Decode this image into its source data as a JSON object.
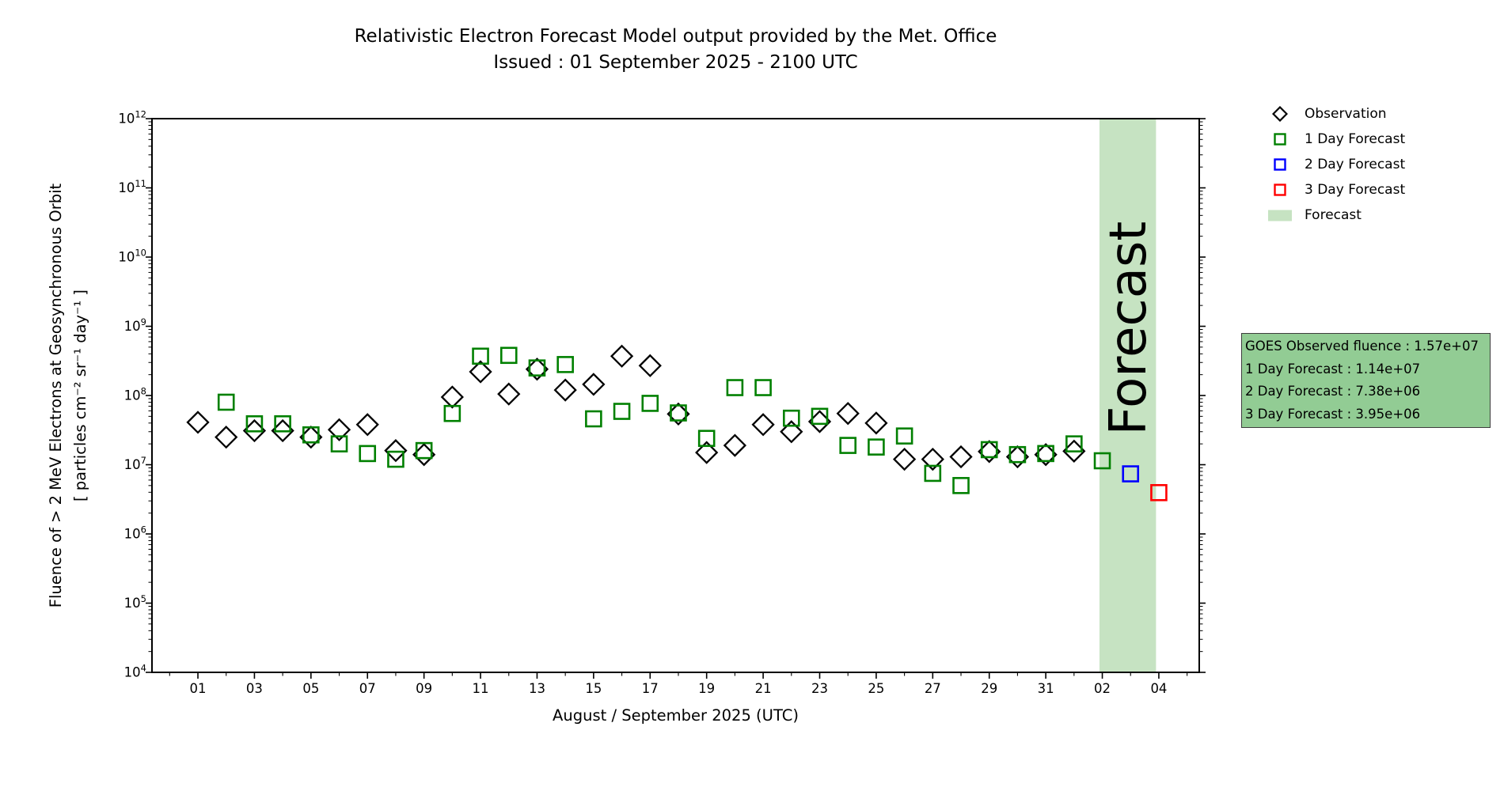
{
  "page": {
    "background": "#ffffff"
  },
  "title": {
    "line1": "Relativistic Electron Forecast Model output provided by the Met. Office",
    "line2": "Issued : 01 September 2025 - 2100 UTC"
  },
  "axes": {
    "x_label": "August / September 2025 (UTC)",
    "y_label_line1": "Fluence of > 2 MeV Electrons at Geosynchronous Orbit",
    "y_label_line2": "[ particles cm⁻² sr⁻¹ day⁻¹ ]"
  },
  "legend": {
    "items": [
      {
        "label": "Observation",
        "marker": "diamond",
        "color": "black"
      },
      {
        "label": "1 Day Forecast",
        "marker": "square",
        "color": "green"
      },
      {
        "label": "2 Day Forecast",
        "marker": "square",
        "color": "blue"
      },
      {
        "label": "3 Day Forecast",
        "marker": "square",
        "color": "red"
      },
      {
        "label": "Forecast",
        "marker": "band",
        "color": "band"
      }
    ]
  },
  "info_box": {
    "lines": [
      "GOES Observed fluence : 1.57e+07",
      "1 Day Forecast : 1.14e+07",
      "2 Day Forecast : 7.38e+06",
      "3 Day Forecast : 3.95e+06"
    ]
  },
  "colors": {
    "black": "#000000",
    "green": "#008000",
    "blue": "#0000ff",
    "red": "#ff0000",
    "band": "#c6e3c2",
    "watermark": "#87a085",
    "infobox": "#92cc94",
    "infobox_border": "#3d3d3d"
  },
  "chart_data": {
    "type": "scatter",
    "title": "Relativistic Electron Forecast Model output provided by the Met. Office",
    "subtitle": "Issued : 01 September 2025 - 2100 UTC",
    "xlabel": "August / September 2025 (UTC)",
    "ylabel": "Fluence of > 2 MeV Electrons at Geosynchronous Orbit [ particles cm⁻² sr⁻¹ day⁻¹ ]",
    "x_axis": {
      "note": "day index: 1 = 01 Aug 2025, 31 = 31 Aug, 32 = 01 Sep, 33 = 02 Sep, 34 = 03 Sep, 35 = 04 Sep",
      "major_ticks": [
        {
          "day": 1,
          "label": "01"
        },
        {
          "day": 3,
          "label": "03"
        },
        {
          "day": 5,
          "label": "05"
        },
        {
          "day": 7,
          "label": "07"
        },
        {
          "day": 9,
          "label": "09"
        },
        {
          "day": 11,
          "label": "11"
        },
        {
          "day": 13,
          "label": "13"
        },
        {
          "day": 15,
          "label": "15"
        },
        {
          "day": 17,
          "label": "17"
        },
        {
          "day": 19,
          "label": "19"
        },
        {
          "day": 21,
          "label": "21"
        },
        {
          "day": 23,
          "label": "23"
        },
        {
          "day": 25,
          "label": "25"
        },
        {
          "day": 27,
          "label": "27"
        },
        {
          "day": 29,
          "label": "29"
        },
        {
          "day": 31,
          "label": "31"
        },
        {
          "day": 33,
          "label": "02"
        },
        {
          "day": 35,
          "label": "04"
        }
      ],
      "minor_tick_days": [
        0,
        2,
        4,
        6,
        8,
        10,
        12,
        14,
        16,
        18,
        20,
        22,
        24,
        26,
        28,
        30,
        32,
        34,
        36
      ]
    },
    "y_axis": {
      "scale": "log",
      "min": 10000.0,
      "max": 1000000000000.0,
      "tick_exponents": [
        4,
        5,
        6,
        7,
        8,
        9,
        10,
        11,
        12
      ]
    },
    "series": [
      {
        "name": "Observation",
        "marker": "diamond",
        "color": "black",
        "days": [
          1,
          2,
          3,
          4,
          5,
          6,
          7,
          8,
          9,
          10,
          11,
          12,
          13,
          14,
          15,
          16,
          17,
          18,
          19,
          20,
          21,
          22,
          23,
          24,
          25,
          26,
          27,
          28,
          29,
          30,
          31,
          32
        ],
        "values": [
          41000000.0,
          25000000.0,
          31000000.0,
          31000000.0,
          25000000.0,
          32000000.0,
          38000000.0,
          16000000.0,
          14000000.0,
          95000000.0,
          220000000.0,
          105000000.0,
          240000000.0,
          120000000.0,
          145000000.0,
          370000000.0,
          270000000.0,
          54000000.0,
          15000000.0,
          19000000.0,
          38000000.0,
          30000000.0,
          42000000.0,
          55000000.0,
          40000000.0,
          12000000.0,
          12000000.0,
          13000000.0,
          15500000.0,
          13000000.0,
          14000000.0,
          15700000.0
        ]
      },
      {
        "name": "1 Day Forecast",
        "marker": "square",
        "color": "green",
        "days": [
          2,
          3,
          4,
          5,
          6,
          7,
          8,
          9,
          10,
          11,
          12,
          13,
          14,
          15,
          16,
          17,
          18,
          19,
          20,
          21,
          22,
          23,
          24,
          25,
          26,
          27,
          28,
          29,
          30,
          31,
          32,
          33
        ],
        "values": [
          80000000.0,
          39000000.0,
          39000000.0,
          27000000.0,
          20000000.0,
          14500000.0,
          12000000.0,
          16000000.0,
          55000000.0,
          370000000.0,
          380000000.0,
          250000000.0,
          280000000.0,
          46000000.0,
          59000000.0,
          77000000.0,
          56000000.0,
          24000000.0,
          130000000.0,
          130000000.0,
          47000000.0,
          50000000.0,
          19000000.0,
          18000000.0,
          26000000.0,
          7500000.0,
          5000000.0,
          16500000.0,
          14000000.0,
          14500000.0,
          20000000.0,
          11400000.0
        ]
      },
      {
        "name": "2 Day Forecast",
        "marker": "square",
        "color": "blue",
        "days": [
          34
        ],
        "values": [
          7380000.0
        ]
      },
      {
        "name": "3 Day Forecast",
        "marker": "square",
        "color": "red",
        "days": [
          35
        ],
        "values": [
          3950000.0
        ]
      }
    ],
    "forecast_band": {
      "start_day": 32.9,
      "end_day": 34.9,
      "label": "Forecast"
    }
  }
}
